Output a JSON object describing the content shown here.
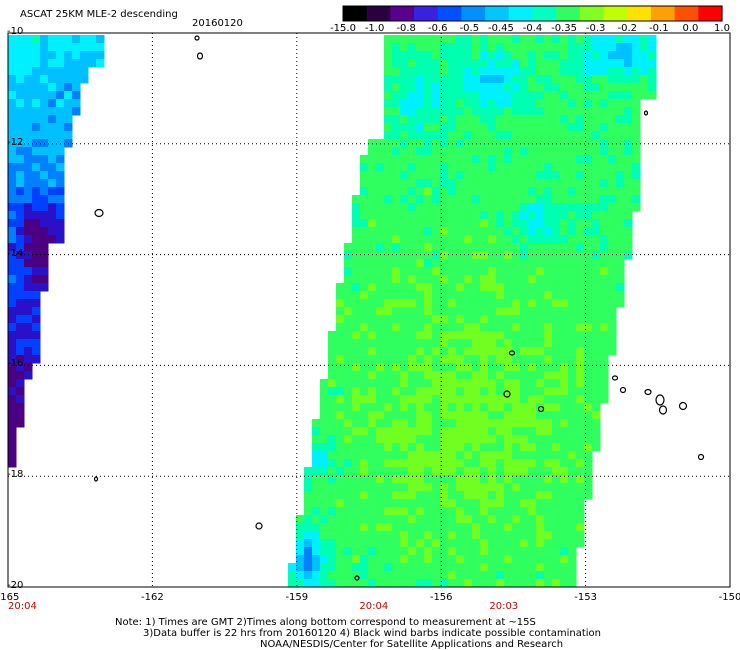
{
  "header": {
    "title": "ASCAT 25KM MLE-2 descending",
    "date": "20160120"
  },
  "colorbar": {
    "labels": [
      "-15.0",
      "-1.0",
      "-0.8",
      "-0.6",
      "-0.5",
      "-0.45",
      "-0.4",
      "-0.35",
      "-0.3",
      "-0.2",
      "-0.1",
      "0.0",
      "1.0"
    ],
    "colors": [
      "#000000",
      "#2a0040",
      "#5a0090",
      "#3a20e0",
      "#0050ff",
      "#0090ff",
      "#00c8ff",
      "#00f0ff",
      "#00ffc0",
      "#30ff60",
      "#80ff20",
      "#c0ff00",
      "#ffe000",
      "#ffa000",
      "#ff5000",
      "#ff0000"
    ]
  },
  "map": {
    "lon_range": [
      -165,
      -150
    ],
    "lat_range": [
      -20,
      -10
    ],
    "lat_labels": [
      "-10",
      "-12",
      "-14",
      "-16",
      "-18",
      "-20"
    ],
    "lon_labels": [
      "-165",
      "-162",
      "-159",
      "-156",
      "-153",
      "-150"
    ],
    "times": [
      {
        "label": "20:04",
        "lon": -165
      },
      {
        "label": "20:04",
        "lon": -157.4
      },
      {
        "label": "20:03",
        "lon": -154.7
      }
    ]
  },
  "footer": {
    "line1": "Note: 1) Times are GMT 2)Times along bottom correspond to measurement at ~15S",
    "line2": "3)Data buffer is 22 hrs from 20160120 4) Black wind barbs indicate possible contamination",
    "line3": "NOAA/NESDIS/Center for Satellite Applications and Research"
  }
}
